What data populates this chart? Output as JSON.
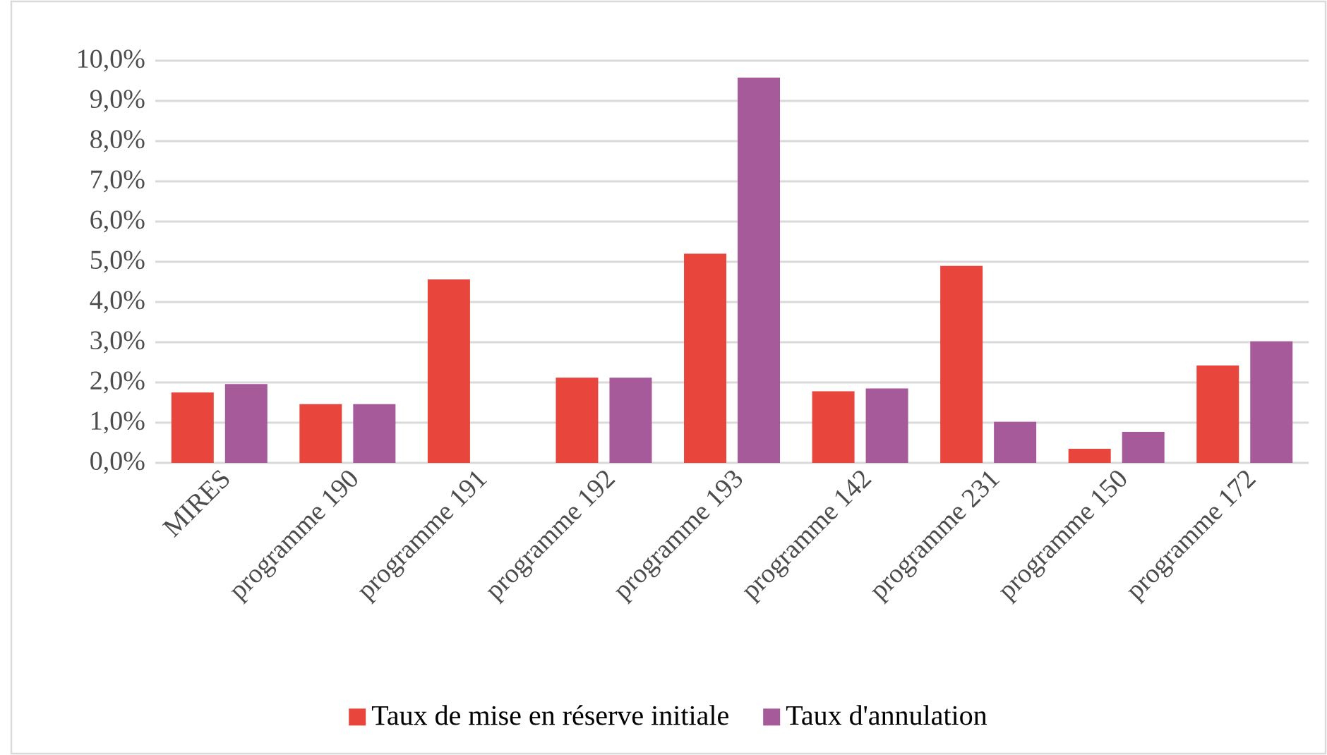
{
  "chart_data": {
    "type": "bar",
    "categories": [
      "MIRES",
      "programme 190",
      "programme 191",
      "programme 192",
      "programme 193",
      "programme 142",
      "programme 231",
      "programme 150",
      "programme 172"
    ],
    "series": [
      {
        "name": "Taux de mise en réserve initiale",
        "color": "#e8453c",
        "values": [
          1.75,
          1.46,
          4.56,
          2.12,
          5.2,
          1.78,
          4.9,
          0.35,
          2.42
        ]
      },
      {
        "name": "Taux d'annulation",
        "color": "#a65a9a",
        "values": [
          1.96,
          1.46,
          null,
          2.12,
          9.58,
          1.85,
          1.02,
          0.77,
          3.02
        ]
      }
    ],
    "ylim": [
      0,
      10
    ],
    "yticks": [
      {
        "value": 0,
        "label": "0,0%"
      },
      {
        "value": 1,
        "label": "1,0%"
      },
      {
        "value": 2,
        "label": "2,0%"
      },
      {
        "value": 3,
        "label": "3,0%"
      },
      {
        "value": 4,
        "label": "4,0%"
      },
      {
        "value": 5,
        "label": "5,0%"
      },
      {
        "value": 6,
        "label": "6,0%"
      },
      {
        "value": 7,
        "label": "7,0%"
      },
      {
        "value": 8,
        "label": "8,0%"
      },
      {
        "value": 9,
        "label": "9,0%"
      },
      {
        "value": 10,
        "label": "10,0%"
      }
    ],
    "grid": "y",
    "legend": "bottom"
  }
}
